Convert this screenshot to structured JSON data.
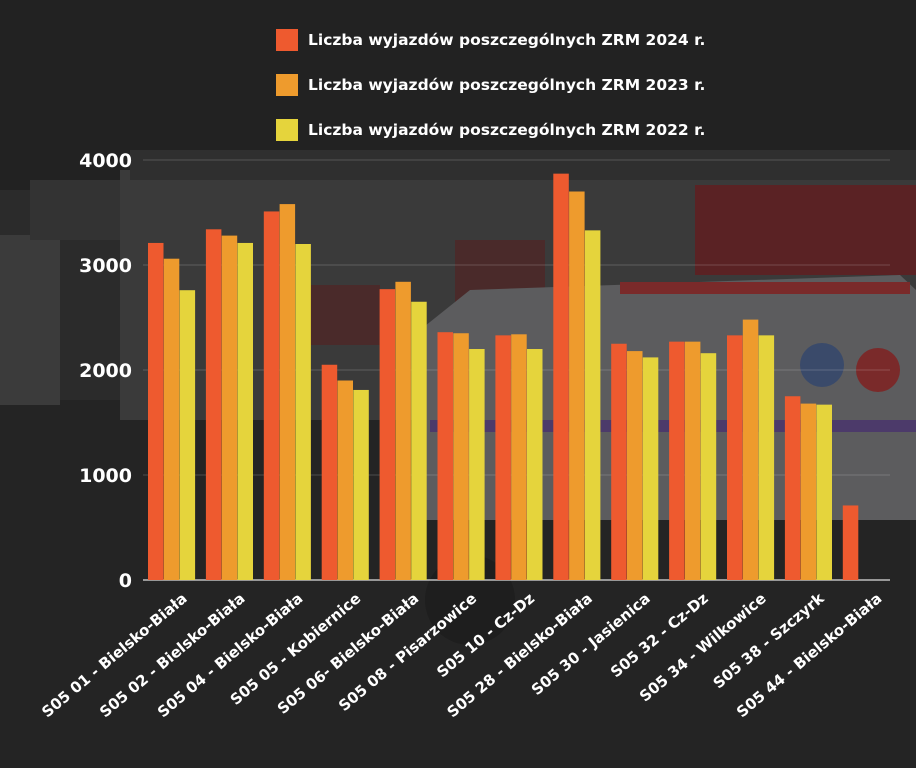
{
  "chart_data": {
    "type": "bar",
    "categories": [
      "S05 01 - Bielsko-Biała",
      "S05 02 - Bielsko-Biała",
      "S05 04 - Bielsko-Biała",
      "S05 05 - Kobiernice",
      "S05 06- Bielsko-Biała",
      "S05 08 - Pisarzowice",
      "S05 10 - Cz-Dz",
      "S05 28 - Bielsko-Biała",
      "S05 30 - Jasienica",
      "S05 32 - Cz-Dz",
      "S05 34 - Wilkowice",
      "S05 38 - Szczyrk",
      "S05 44 - Bielsko-Biała"
    ],
    "series": [
      {
        "name": "Liczba wyjazdów poszczególnych ZRM 2024 r.",
        "color": "#ee5a2f",
        "values": [
          3210,
          3340,
          3510,
          2050,
          2770,
          2360,
          2330,
          3870,
          2250,
          2270,
          2330,
          1750,
          710
        ]
      },
      {
        "name": "Liczba wyjazdów poszczególnych ZRM 2023 r.",
        "color": "#ee9b2d",
        "values": [
          3060,
          3280,
          3580,
          1900,
          2840,
          2350,
          2340,
          3700,
          2180,
          2270,
          2480,
          1680,
          null
        ]
      },
      {
        "name": "Liczba wyjazdów poszczególnych ZRM 2022 r.",
        "color": "#e5d43c",
        "values": [
          2760,
          3210,
          3200,
          1810,
          2650,
          2200,
          2200,
          3330,
          2120,
          2160,
          2330,
          1670,
          null
        ]
      }
    ],
    "yticks": [
      "0",
      "1000",
      "2000",
      "3000",
      "4000"
    ],
    "ylim": [
      0,
      4000
    ],
    "grid": true,
    "legend": "top-right",
    "background": "dark photo of ambulance station"
  }
}
